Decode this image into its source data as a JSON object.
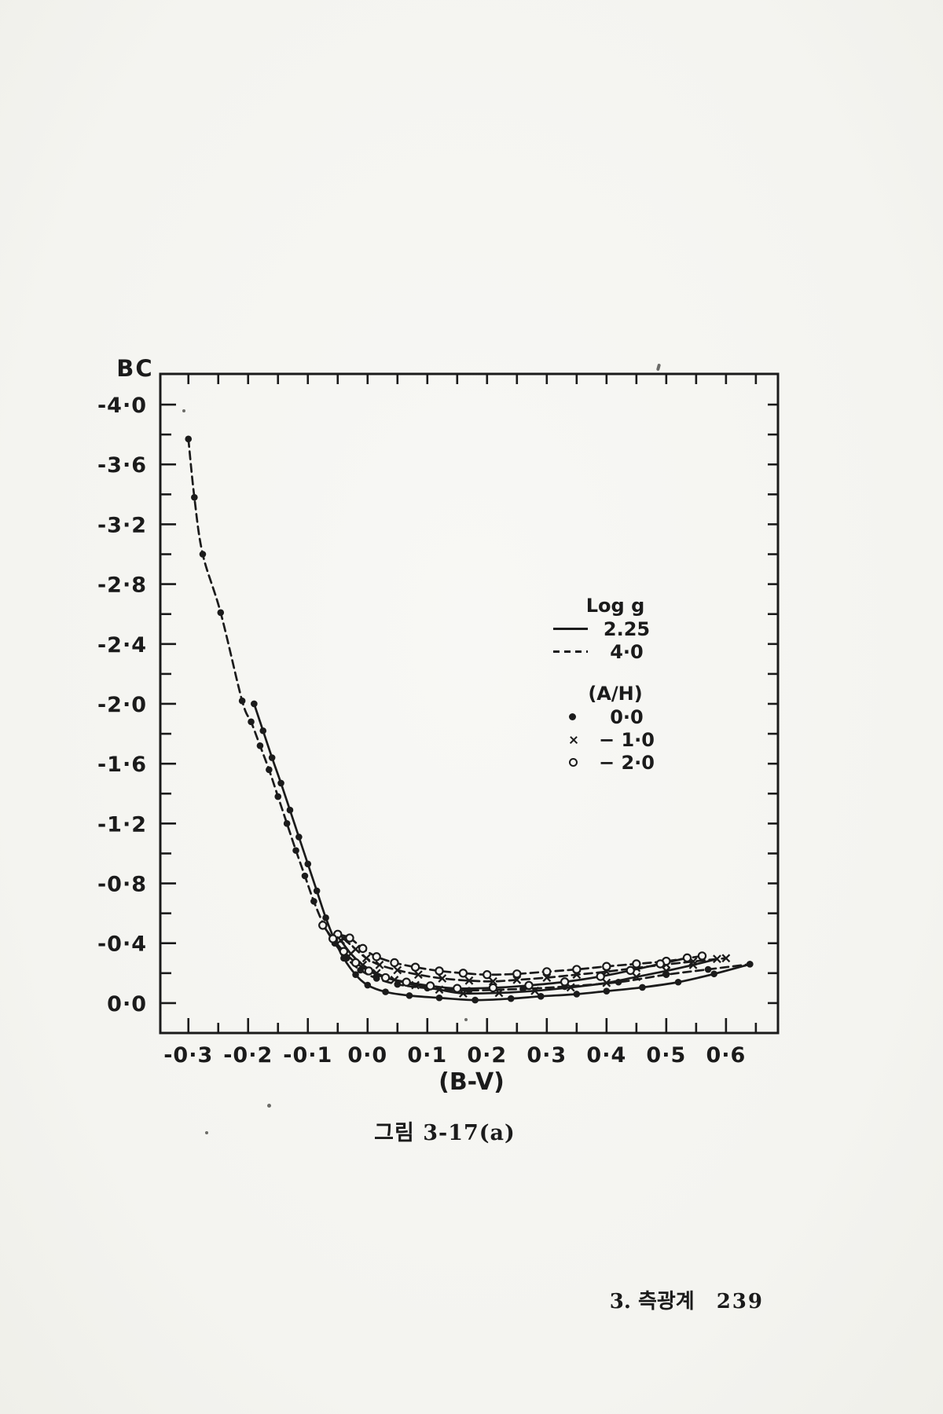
{
  "page": {
    "caption": "그림 3-17(a)",
    "footer": {
      "section": "3.  측광계",
      "page_number": "239"
    }
  },
  "chart_data": {
    "type": "line",
    "title": "",
    "xlabel": "(B-V)",
    "ylabel": "BC",
    "xlim": [
      -0.347,
      0.687
    ],
    "ylim": [
      -4.205,
      0.2
    ],
    "y_axis_inverted_note": "negative BC values increase upward",
    "grid": false,
    "legend_position": "inside upper right",
    "x_ticks": [
      {
        "v": -0.3,
        "label": "-0·3"
      },
      {
        "v": -0.2,
        "label": "-0·2"
      },
      {
        "v": -0.1,
        "label": "-0·1"
      },
      {
        "v": 0.0,
        "label": "0·0"
      },
      {
        "v": 0.1,
        "label": "0·1"
      },
      {
        "v": 0.2,
        "label": "0·2"
      },
      {
        "v": 0.3,
        "label": "0·3"
      },
      {
        "v": 0.4,
        "label": "0·4"
      },
      {
        "v": 0.5,
        "label": "0·5"
      },
      {
        "v": 0.6,
        "label": "0·6"
      }
    ],
    "x_minor_step": 0.05,
    "x_minor_range": [
      -0.3,
      0.65
    ],
    "y_ticks": [
      {
        "v": -4.0,
        "label": "-4·0"
      },
      {
        "v": -3.6,
        "label": "-3·6"
      },
      {
        "v": -3.2,
        "label": "-3·2"
      },
      {
        "v": -2.8,
        "label": "-2·8"
      },
      {
        "v": -2.4,
        "label": "-2·4"
      },
      {
        "v": -2.0,
        "label": "-2·0"
      },
      {
        "v": -1.6,
        "label": "-1·6"
      },
      {
        "v": -1.2,
        "label": "-1·2"
      },
      {
        "v": -0.8,
        "label": "-0·8"
      },
      {
        "v": -0.4,
        "label": "-0·4"
      },
      {
        "v": 0.0,
        "label": "0·0"
      }
    ],
    "y_minor_step": 0.2,
    "y_minor_range": [
      -4.0,
      0.0
    ],
    "legend": {
      "linestyle_title": "Log g",
      "linestyles": [
        {
          "style": "solid",
          "label": "2.25"
        },
        {
          "style": "dashed",
          "label": "4·0"
        }
      ],
      "marker_title": "(A/H)",
      "markers": [
        {
          "marker": "dot",
          "label": "0·0"
        },
        {
          "marker": "x",
          "label": "− 1·0"
        },
        {
          "marker": "circle",
          "label": "− 2·0"
        }
      ]
    },
    "series": [
      {
        "id": "logg4.0-ah0.0",
        "log_g": "4.0",
        "a_h": "0.0",
        "linestyle": "dashed",
        "marker": "dot",
        "points": [
          [
            -0.3,
            -3.77
          ],
          [
            -0.29,
            -3.38
          ],
          [
            -0.276,
            -3.0
          ],
          [
            -0.246,
            -2.61
          ],
          [
            -0.21,
            -2.02
          ],
          [
            -0.195,
            -1.88
          ],
          [
            -0.18,
            -1.72
          ],
          [
            -0.165,
            -1.56
          ],
          [
            -0.15,
            -1.38
          ],
          [
            -0.135,
            -1.2
          ],
          [
            -0.12,
            -1.02
          ],
          [
            -0.105,
            -0.85
          ],
          [
            -0.09,
            -0.68
          ],
          [
            -0.073,
            -0.52
          ],
          [
            -0.055,
            -0.4
          ],
          [
            -0.035,
            -0.3
          ],
          [
            -0.012,
            -0.22
          ],
          [
            0.015,
            -0.165
          ],
          [
            0.05,
            -0.125
          ],
          [
            0.1,
            -0.1
          ],
          [
            0.17,
            -0.085
          ],
          [
            0.26,
            -0.095
          ],
          [
            0.33,
            -0.11
          ],
          [
            0.42,
            -0.14
          ],
          [
            0.5,
            -0.19
          ],
          [
            0.57,
            -0.225
          ],
          [
            0.64,
            -0.26
          ]
        ]
      },
      {
        "id": "logg4.0-ah-1.0",
        "log_g": "4.0",
        "a_h": "-1.0",
        "linestyle": "dashed",
        "marker": "x",
        "points": [
          [
            -0.04,
            -0.43
          ],
          [
            -0.02,
            -0.36
          ],
          [
            -0.002,
            -0.3
          ],
          [
            0.02,
            -0.255
          ],
          [
            0.05,
            -0.22
          ],
          [
            0.085,
            -0.19
          ],
          [
            0.125,
            -0.165
          ],
          [
            0.17,
            -0.15
          ],
          [
            0.21,
            -0.145
          ],
          [
            0.25,
            -0.155
          ],
          [
            0.3,
            -0.17
          ],
          [
            0.35,
            -0.19
          ],
          [
            0.4,
            -0.21
          ],
          [
            0.45,
            -0.235
          ],
          [
            0.5,
            -0.258
          ],
          [
            0.545,
            -0.278
          ],
          [
            0.6,
            -0.3
          ]
        ]
      },
      {
        "id": "logg4.0-ah-2.0",
        "log_g": "4.0",
        "a_h": "-2.0",
        "linestyle": "dashed",
        "marker": "circle",
        "points": [
          [
            -0.05,
            -0.46
          ],
          [
            -0.03,
            -0.435
          ],
          [
            -0.008,
            -0.365
          ],
          [
            0.015,
            -0.31
          ],
          [
            0.045,
            -0.27
          ],
          [
            0.08,
            -0.24
          ],
          [
            0.12,
            -0.215
          ],
          [
            0.16,
            -0.2
          ],
          [
            0.2,
            -0.19
          ],
          [
            0.25,
            -0.195
          ],
          [
            0.3,
            -0.21
          ],
          [
            0.35,
            -0.225
          ],
          [
            0.4,
            -0.245
          ],
          [
            0.45,
            -0.262
          ],
          [
            0.5,
            -0.28
          ],
          [
            0.56,
            -0.315
          ]
        ]
      },
      {
        "id": "logg2.25-ah0.0",
        "log_g": "2.25",
        "a_h": "0.0",
        "linestyle": "solid",
        "marker": "dot",
        "points": [
          [
            -0.19,
            -2.0
          ],
          [
            -0.175,
            -1.82
          ],
          [
            -0.16,
            -1.64
          ],
          [
            -0.145,
            -1.47
          ],
          [
            -0.13,
            -1.29
          ],
          [
            -0.115,
            -1.11
          ],
          [
            -0.1,
            -0.93
          ],
          [
            -0.085,
            -0.75
          ],
          [
            -0.07,
            -0.57
          ],
          [
            -0.055,
            -0.42
          ],
          [
            -0.04,
            -0.3
          ],
          [
            -0.02,
            -0.19
          ],
          [
            0.0,
            -0.12
          ],
          [
            0.03,
            -0.075
          ],
          [
            0.07,
            -0.05
          ],
          [
            0.12,
            -0.035
          ],
          [
            0.18,
            -0.02
          ],
          [
            0.24,
            -0.03
          ],
          [
            0.29,
            -0.045
          ],
          [
            0.35,
            -0.06
          ],
          [
            0.4,
            -0.08
          ],
          [
            0.46,
            -0.105
          ],
          [
            0.52,
            -0.14
          ],
          [
            0.58,
            -0.195
          ],
          [
            0.64,
            -0.26
          ]
        ]
      },
      {
        "id": "logg2.25-ah-1.0",
        "log_g": "2.25",
        "a_h": "-1.0",
        "linestyle": "solid",
        "marker": "x",
        "points": [
          [
            -0.045,
            -0.42
          ],
          [
            -0.028,
            -0.33
          ],
          [
            -0.008,
            -0.255
          ],
          [
            0.015,
            -0.2
          ],
          [
            0.045,
            -0.155
          ],
          [
            0.08,
            -0.12
          ],
          [
            0.12,
            -0.09
          ],
          [
            0.16,
            -0.065
          ],
          [
            0.22,
            -0.068
          ],
          [
            0.28,
            -0.082
          ],
          [
            0.34,
            -0.105
          ],
          [
            0.4,
            -0.135
          ],
          [
            0.45,
            -0.175
          ],
          [
            0.5,
            -0.215
          ],
          [
            0.545,
            -0.255
          ],
          [
            0.585,
            -0.295
          ]
        ]
      },
      {
        "id": "logg2.25-ah-2.0",
        "log_g": "2.25",
        "a_h": "-2.0",
        "linestyle": "solid",
        "marker": "circle",
        "points": [
          [
            -0.075,
            -0.52
          ],
          [
            -0.058,
            -0.43
          ],
          [
            -0.04,
            -0.345
          ],
          [
            -0.02,
            -0.27
          ],
          [
            0.002,
            -0.215
          ],
          [
            0.03,
            -0.17
          ],
          [
            0.065,
            -0.14
          ],
          [
            0.105,
            -0.115
          ],
          [
            0.15,
            -0.098
          ],
          [
            0.21,
            -0.102
          ],
          [
            0.27,
            -0.118
          ],
          [
            0.33,
            -0.142
          ],
          [
            0.39,
            -0.178
          ],
          [
            0.44,
            -0.218
          ],
          [
            0.49,
            -0.262
          ],
          [
            0.535,
            -0.302
          ]
        ]
      }
    ],
    "colors": {
      "ink": "#1b1b1b",
      "paper": "#f6f6f3"
    }
  }
}
